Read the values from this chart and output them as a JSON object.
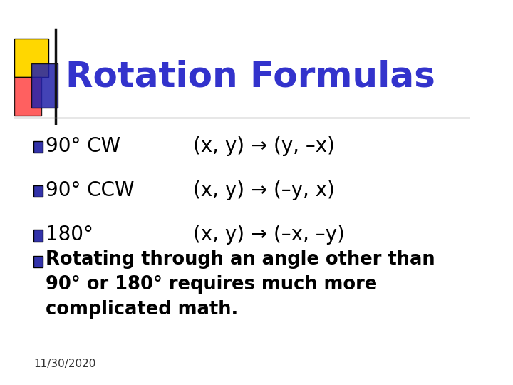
{
  "title": "Rotation Formulas",
  "title_color": "#3333CC",
  "title_fontsize": 36,
  "background_color": "#FFFFFF",
  "bullet_square_color": "#3333AA",
  "bullets": [
    {
      "label": "90° CW",
      "formula": "(x, y) → (y, –x)"
    },
    {
      "label": "90° CCW",
      "formula": "(x, y) → (–y, x)"
    },
    {
      "label": "180°",
      "formula": "(x, y) → (–x, –y)"
    }
  ],
  "extra_bullet": "Rotating through an angle other than\n90° or 180° requires much more\ncomplicated math.",
  "date_label": "11/30/2020",
  "header_line_color": "#888888",
  "decoration_yellow": "#FFD700",
  "decoration_red": "#FF4444",
  "decoration_blue_dark": "#2222AA",
  "deco_line_color": "#111111"
}
